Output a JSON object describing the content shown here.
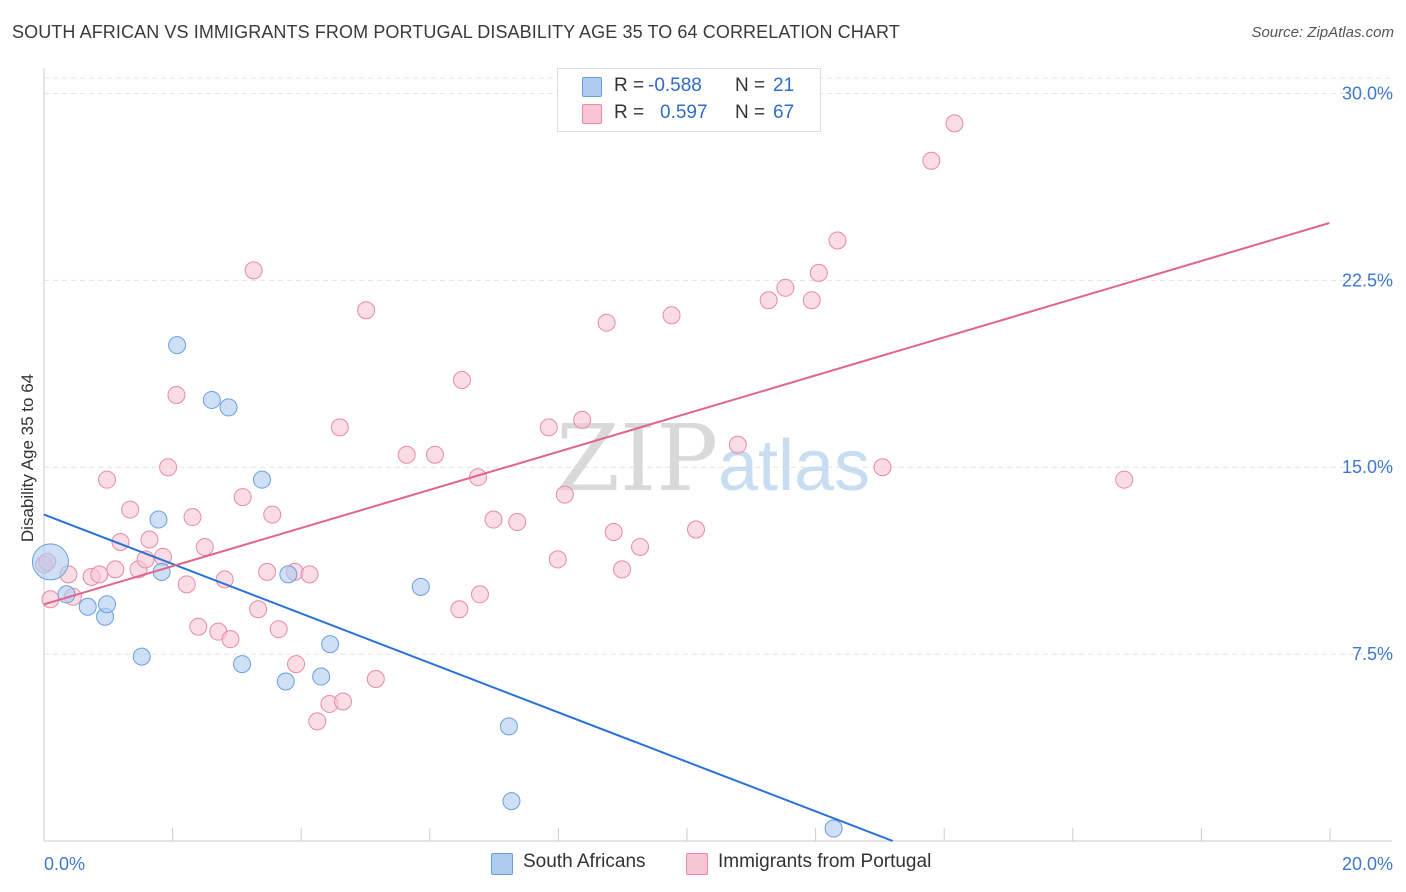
{
  "title": "SOUTH AFRICAN VS IMMIGRANTS FROM PORTUGAL DISABILITY AGE 35 TO 64 CORRELATION CHART",
  "source": "Source: ZipAtlas.com",
  "watermark": {
    "part1": "ZIP",
    "part2": "atlas"
  },
  "legend_top": {
    "rows": [
      {
        "r_label": "R =",
        "r_value": "-0.588",
        "n_label": "N =",
        "n_value": "21"
      },
      {
        "r_label": "R =",
        "r_value": "0.597",
        "n_label": "N =",
        "n_value": "67"
      }
    ]
  },
  "legend_bottom": {
    "items": [
      "South Africans",
      "Immigrants from Portugal"
    ]
  },
  "chart_data": {
    "type": "scatter",
    "title": "SOUTH AFRICAN VS IMMIGRANTS FROM PORTUGAL DISABILITY AGE 35 TO 64 CORRELATION CHART",
    "xlabel": "",
    "ylabel": "Disability Age 35 to 64",
    "xlim": [
      0,
      20
    ],
    "ylim": [
      0,
      30.7
    ],
    "x_tick_labels": [
      "0.0%",
      "20.0%"
    ],
    "y_ticks": [
      7.5,
      15.0,
      22.5,
      30.0
    ],
    "y_tick_labels": [
      "7.5%",
      "15.0%",
      "22.5%",
      "30.0%"
    ],
    "grid": true,
    "legend_position": "top-center",
    "series": [
      {
        "name": "South Africans",
        "color": "#aecbf0",
        "stroke": "#6a9fdc",
        "line_color": "#2a72d5",
        "points": [
          [
            0.1,
            11.2
          ],
          [
            0.35,
            9.9
          ],
          [
            0.68,
            9.4
          ],
          [
            0.95,
            9.0
          ],
          [
            0.98,
            9.5
          ],
          [
            1.52,
            7.4
          ],
          [
            1.78,
            12.9
          ],
          [
            1.83,
            10.8
          ],
          [
            2.07,
            19.9
          ],
          [
            2.61,
            17.7
          ],
          [
            2.87,
            17.4
          ],
          [
            3.08,
            7.1
          ],
          [
            3.39,
            14.5
          ],
          [
            3.76,
            6.4
          ],
          [
            3.8,
            10.7
          ],
          [
            4.31,
            6.6
          ],
          [
            4.45,
            7.9
          ],
          [
            5.86,
            10.2
          ],
          [
            7.23,
            4.6
          ],
          [
            7.27,
            1.6
          ],
          [
            12.28,
            0.5
          ]
        ],
        "trend": [
          [
            0,
            13.1
          ],
          [
            13.2,
            0
          ]
        ]
      },
      {
        "name": "Immigrants from Portugal",
        "color": "#f7c5d3",
        "stroke": "#e88aa6",
        "line_color": "#e0648b",
        "points": [
          [
            0.0,
            11.1
          ],
          [
            0.1,
            9.7
          ],
          [
            0.38,
            10.7
          ],
          [
            0.45,
            9.8
          ],
          [
            0.74,
            10.6
          ],
          [
            0.86,
            10.7
          ],
          [
            0.98,
            14.5
          ],
          [
            1.11,
            10.9
          ],
          [
            1.19,
            12.0
          ],
          [
            1.34,
            13.3
          ],
          [
            1.47,
            10.9
          ],
          [
            1.58,
            11.3
          ],
          [
            1.64,
            12.1
          ],
          [
            1.85,
            11.4
          ],
          [
            1.93,
            15.0
          ],
          [
            2.06,
            17.9
          ],
          [
            2.22,
            10.3
          ],
          [
            2.31,
            13.0
          ],
          [
            2.4,
            8.6
          ],
          [
            2.5,
            11.8
          ],
          [
            2.71,
            8.4
          ],
          [
            2.81,
            10.5
          ],
          [
            2.9,
            8.1
          ],
          [
            3.09,
            13.8
          ],
          [
            3.26,
            22.9
          ],
          [
            3.33,
            9.3
          ],
          [
            3.47,
            10.8
          ],
          [
            3.55,
            13.1
          ],
          [
            3.65,
            8.5
          ],
          [
            3.9,
            10.8
          ],
          [
            3.92,
            7.1
          ],
          [
            4.13,
            10.7
          ],
          [
            4.25,
            4.8
          ],
          [
            4.44,
            5.5
          ],
          [
            4.6,
            16.6
          ],
          [
            4.65,
            5.6
          ],
          [
            5.01,
            21.3
          ],
          [
            5.16,
            6.5
          ],
          [
            5.64,
            15.5
          ],
          [
            6.08,
            15.5
          ],
          [
            6.46,
            9.3
          ],
          [
            6.5,
            18.5
          ],
          [
            6.75,
            14.6
          ],
          [
            6.78,
            9.9
          ],
          [
            6.99,
            12.9
          ],
          [
            7.36,
            12.8
          ],
          [
            7.85,
            16.6
          ],
          [
            7.99,
            11.3
          ],
          [
            8.1,
            13.9
          ],
          [
            8.37,
            16.9
          ],
          [
            8.75,
            20.8
          ],
          [
            8.86,
            12.4
          ],
          [
            8.99,
            10.9
          ],
          [
            9.27,
            11.8
          ],
          [
            9.76,
            21.1
          ],
          [
            10.14,
            12.5
          ],
          [
            10.79,
            15.9
          ],
          [
            11.27,
            21.7
          ],
          [
            11.53,
            22.2
          ],
          [
            11.94,
            21.7
          ],
          [
            12.05,
            22.8
          ],
          [
            12.34,
            24.1
          ],
          [
            13.04,
            15.0
          ],
          [
            13.8,
            27.3
          ],
          [
            14.16,
            28.8
          ],
          [
            16.8,
            14.5
          ],
          [
            0.05,
            11.2
          ]
        ],
        "trend": [
          [
            0,
            9.5
          ],
          [
            19.99,
            24.8
          ]
        ]
      }
    ]
  }
}
